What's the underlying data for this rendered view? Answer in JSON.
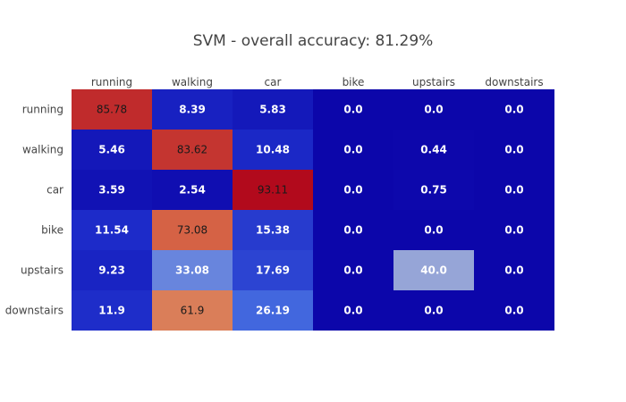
{
  "chart_data": {
    "type": "heatmap",
    "title": "SVM - overall accuracy: 81.29%",
    "x_categories": [
      "running",
      "walking",
      "car",
      "bike",
      "upstairs",
      "downstairs"
    ],
    "y_categories": [
      "running",
      "walking",
      "car",
      "bike",
      "upstairs",
      "downstairs"
    ],
    "values": [
      [
        "85.78",
        "8.39",
        "5.83",
        "0.0",
        "0.0",
        "0.0"
      ],
      [
        "5.46",
        "83.62",
        "10.48",
        "0.0",
        "0.44",
        "0.0"
      ],
      [
        "3.59",
        "2.54",
        "93.11",
        "0.0",
        "0.75",
        "0.0"
      ],
      [
        "11.54",
        "73.08",
        "15.38",
        "0.0",
        "0.0",
        "0.0"
      ],
      [
        "9.23",
        "33.08",
        "17.69",
        "0.0",
        "40.0",
        "0.0"
      ],
      [
        "11.9",
        "61.9",
        "26.19",
        "0.0",
        "0.0",
        "0.0"
      ]
    ],
    "x_axis_position": "top",
    "zmin": 0,
    "zmax": 93.11,
    "colorscale": "Coolwarm (blue to red)",
    "show_colorbar": false
  }
}
